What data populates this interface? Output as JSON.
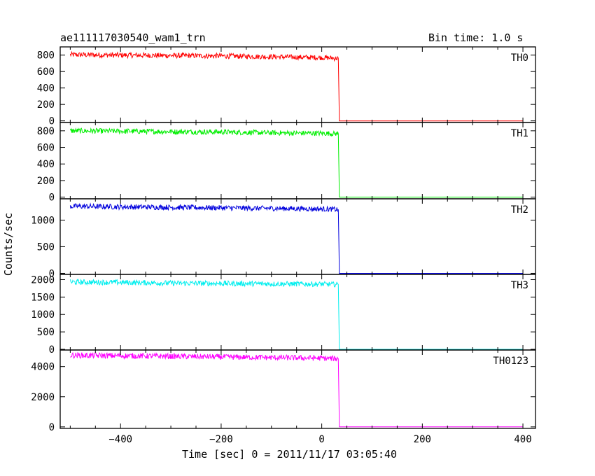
{
  "header": {
    "title": "ae111117030540_wam1_trn",
    "bin_time": "Bin time: 1.0 s"
  },
  "chart_data": {
    "type": "line",
    "xlabel": "Time [sec] 0 = 2011/11/17 03:05:40",
    "ylabel": "Counts/sec",
    "xlim": [
      -520,
      425
    ],
    "xticks": [
      -400,
      -200,
      0,
      200,
      400
    ],
    "drop_time": 34,
    "series": [
      {
        "name": "TH0",
        "color": "#ff0000",
        "ylim": [
          -20,
          900
        ],
        "yticks": [
          0,
          200,
          400,
          600,
          800
        ],
        "x": [
          -500,
          -400,
          -300,
          -200,
          -100,
          0,
          33,
          35,
          400
        ],
        "values": [
          805,
          800,
          795,
          790,
          780,
          770,
          760,
          0,
          0
        ]
      },
      {
        "name": "TH1",
        "color": "#00ee00",
        "ylim": [
          -20,
          900
        ],
        "yticks": [
          0,
          200,
          400,
          600,
          800
        ],
        "x": [
          -500,
          -400,
          -300,
          -200,
          -100,
          0,
          33,
          35,
          400
        ],
        "values": [
          800,
          795,
          790,
          785,
          775,
          770,
          765,
          0,
          0
        ]
      },
      {
        "name": "TH2",
        "color": "#0000dd",
        "ylim": [
          -20,
          1400
        ],
        "yticks": [
          0,
          500,
          1000
        ],
        "x": [
          -500,
          -400,
          -300,
          -200,
          -100,
          0,
          33,
          35,
          400
        ],
        "values": [
          1260,
          1250,
          1240,
          1230,
          1220,
          1210,
          1200,
          0,
          0
        ]
      },
      {
        "name": "TH3",
        "color": "#00eeee",
        "ylim": [
          -20,
          2150
        ],
        "yticks": [
          0,
          500,
          1000,
          1500,
          2000
        ],
        "x": [
          -500,
          -400,
          -300,
          -200,
          -100,
          0,
          33,
          35,
          400
        ],
        "values": [
          1930,
          1920,
          1900,
          1890,
          1880,
          1870,
          1860,
          0,
          0
        ]
      },
      {
        "name": "TH0123",
        "color": "#ff00ff",
        "ylim": [
          -100,
          5100
        ],
        "yticks": [
          0,
          2000,
          4000
        ],
        "x": [
          -500,
          -400,
          -300,
          -200,
          -100,
          0,
          33,
          35,
          400
        ],
        "values": [
          4750,
          4720,
          4680,
          4640,
          4600,
          4560,
          4520,
          0,
          0
        ]
      }
    ]
  }
}
